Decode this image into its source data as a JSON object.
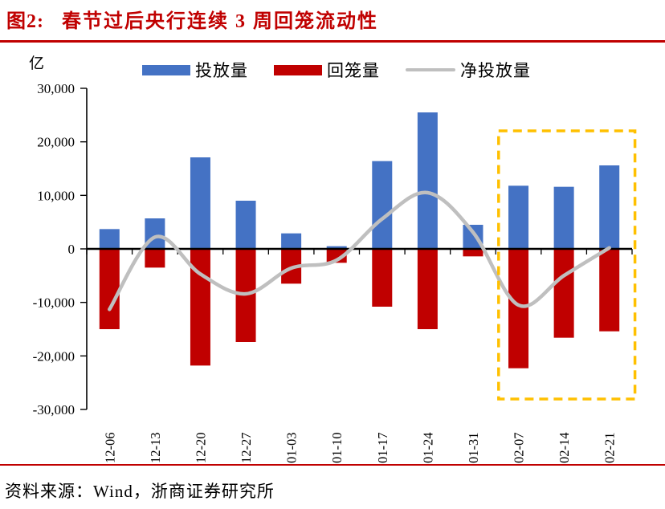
{
  "header": {
    "figure_label": "图2:",
    "title": "春节过后央行连续 3 周回笼流动性"
  },
  "chart_data": {
    "type": "bar+line",
    "title": "春节过后央行连续 3 周回笼流动性",
    "unit_label": "亿",
    "categories": [
      "12-06",
      "12-13",
      "12-20",
      "12-27",
      "01-03",
      "01-10",
      "01-17",
      "01-24",
      "01-31",
      "02-07",
      "02-14",
      "02-21"
    ],
    "series": [
      {
        "name": "投放量",
        "type": "bar",
        "color": "#4472C4",
        "values": [
          3700,
          5700,
          17100,
          9000,
          2900,
          500,
          16400,
          25500,
          4500,
          11800,
          11600,
          15600
        ]
      },
      {
        "name": "回笼量",
        "type": "bar",
        "color": "#C00000",
        "values": [
          -15000,
          -3500,
          -21800,
          -17400,
          -6500,
          -2600,
          -10800,
          -15000,
          -1400,
          -22300,
          -16600,
          -15400
        ]
      },
      {
        "name": "净投放量",
        "type": "line",
        "color": "#BFBFBF",
        "smooth": true,
        "values": [
          -11300,
          2200,
          -4700,
          -8400,
          -3600,
          -2100,
          5600,
          10500,
          3100,
          -10500,
          -5000,
          200
        ]
      }
    ],
    "ylim": [
      -30000,
      30000
    ],
    "ytick_step": 10000,
    "ytick_labels": [
      "30,000",
      "20,000",
      "10,000",
      "0",
      "-10,000",
      "-20,000",
      "-30,000"
    ],
    "grid": false,
    "legend_position": "top",
    "highlight_box": {
      "from": "02-07",
      "to": "02-21",
      "color": "#FFC000",
      "style": "dashed"
    }
  },
  "footer": {
    "source": "资料来源：Wind，浙商证券研究所"
  },
  "colors": {
    "title": "#C00000",
    "rule": "#C00000",
    "axis": "#000000"
  }
}
